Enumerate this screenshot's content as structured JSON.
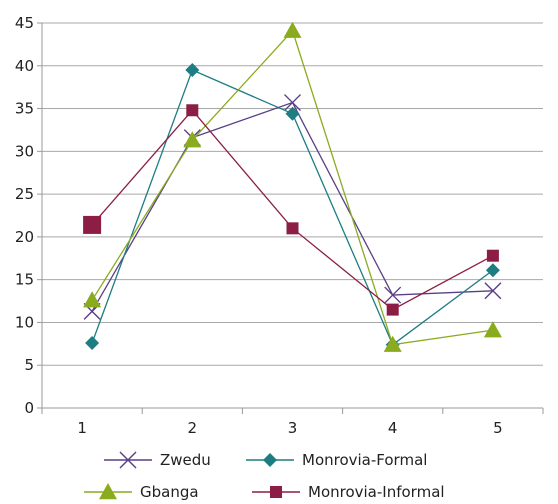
{
  "chart_data": {
    "type": "line",
    "title": "",
    "xlabel": "",
    "ylabel": "",
    "x": [
      1,
      2,
      3,
      4,
      5
    ],
    "x_tick_labels": [
      "1",
      "2",
      "3",
      "4",
      "5"
    ],
    "ylim": [
      0,
      45
    ],
    "y_ticks": [
      0,
      5,
      10,
      15,
      20,
      25,
      30,
      35,
      40,
      45
    ],
    "y_tick_labels": [
      "0",
      "5",
      "10",
      "15",
      "20",
      "25",
      "30",
      "35",
      "40",
      "45"
    ],
    "grid": "horizontal",
    "legend_position": "bottom",
    "series": [
      {
        "name": "Zwedu",
        "values": [
          11.3,
          31.6,
          35.7,
          13.2,
          13.7
        ],
        "color": "#5b3f86",
        "marker": "x"
      },
      {
        "name": "Monrovia-Formal",
        "values": [
          7.6,
          39.5,
          34.4,
          7.4,
          16.1
        ],
        "color": "#1d7d82",
        "marker": "diamond"
      },
      {
        "name": "Gbanga",
        "values": [
          12.6,
          31.3,
          44.1,
          7.4,
          9.1
        ],
        "color": "#8aab1e",
        "marker": "triangle"
      },
      {
        "name": "Monrovia-Informal",
        "values": [
          21.4,
          34.8,
          21.0,
          11.5,
          17.8
        ],
        "color": "#8c1d45",
        "marker": "square"
      }
    ]
  }
}
